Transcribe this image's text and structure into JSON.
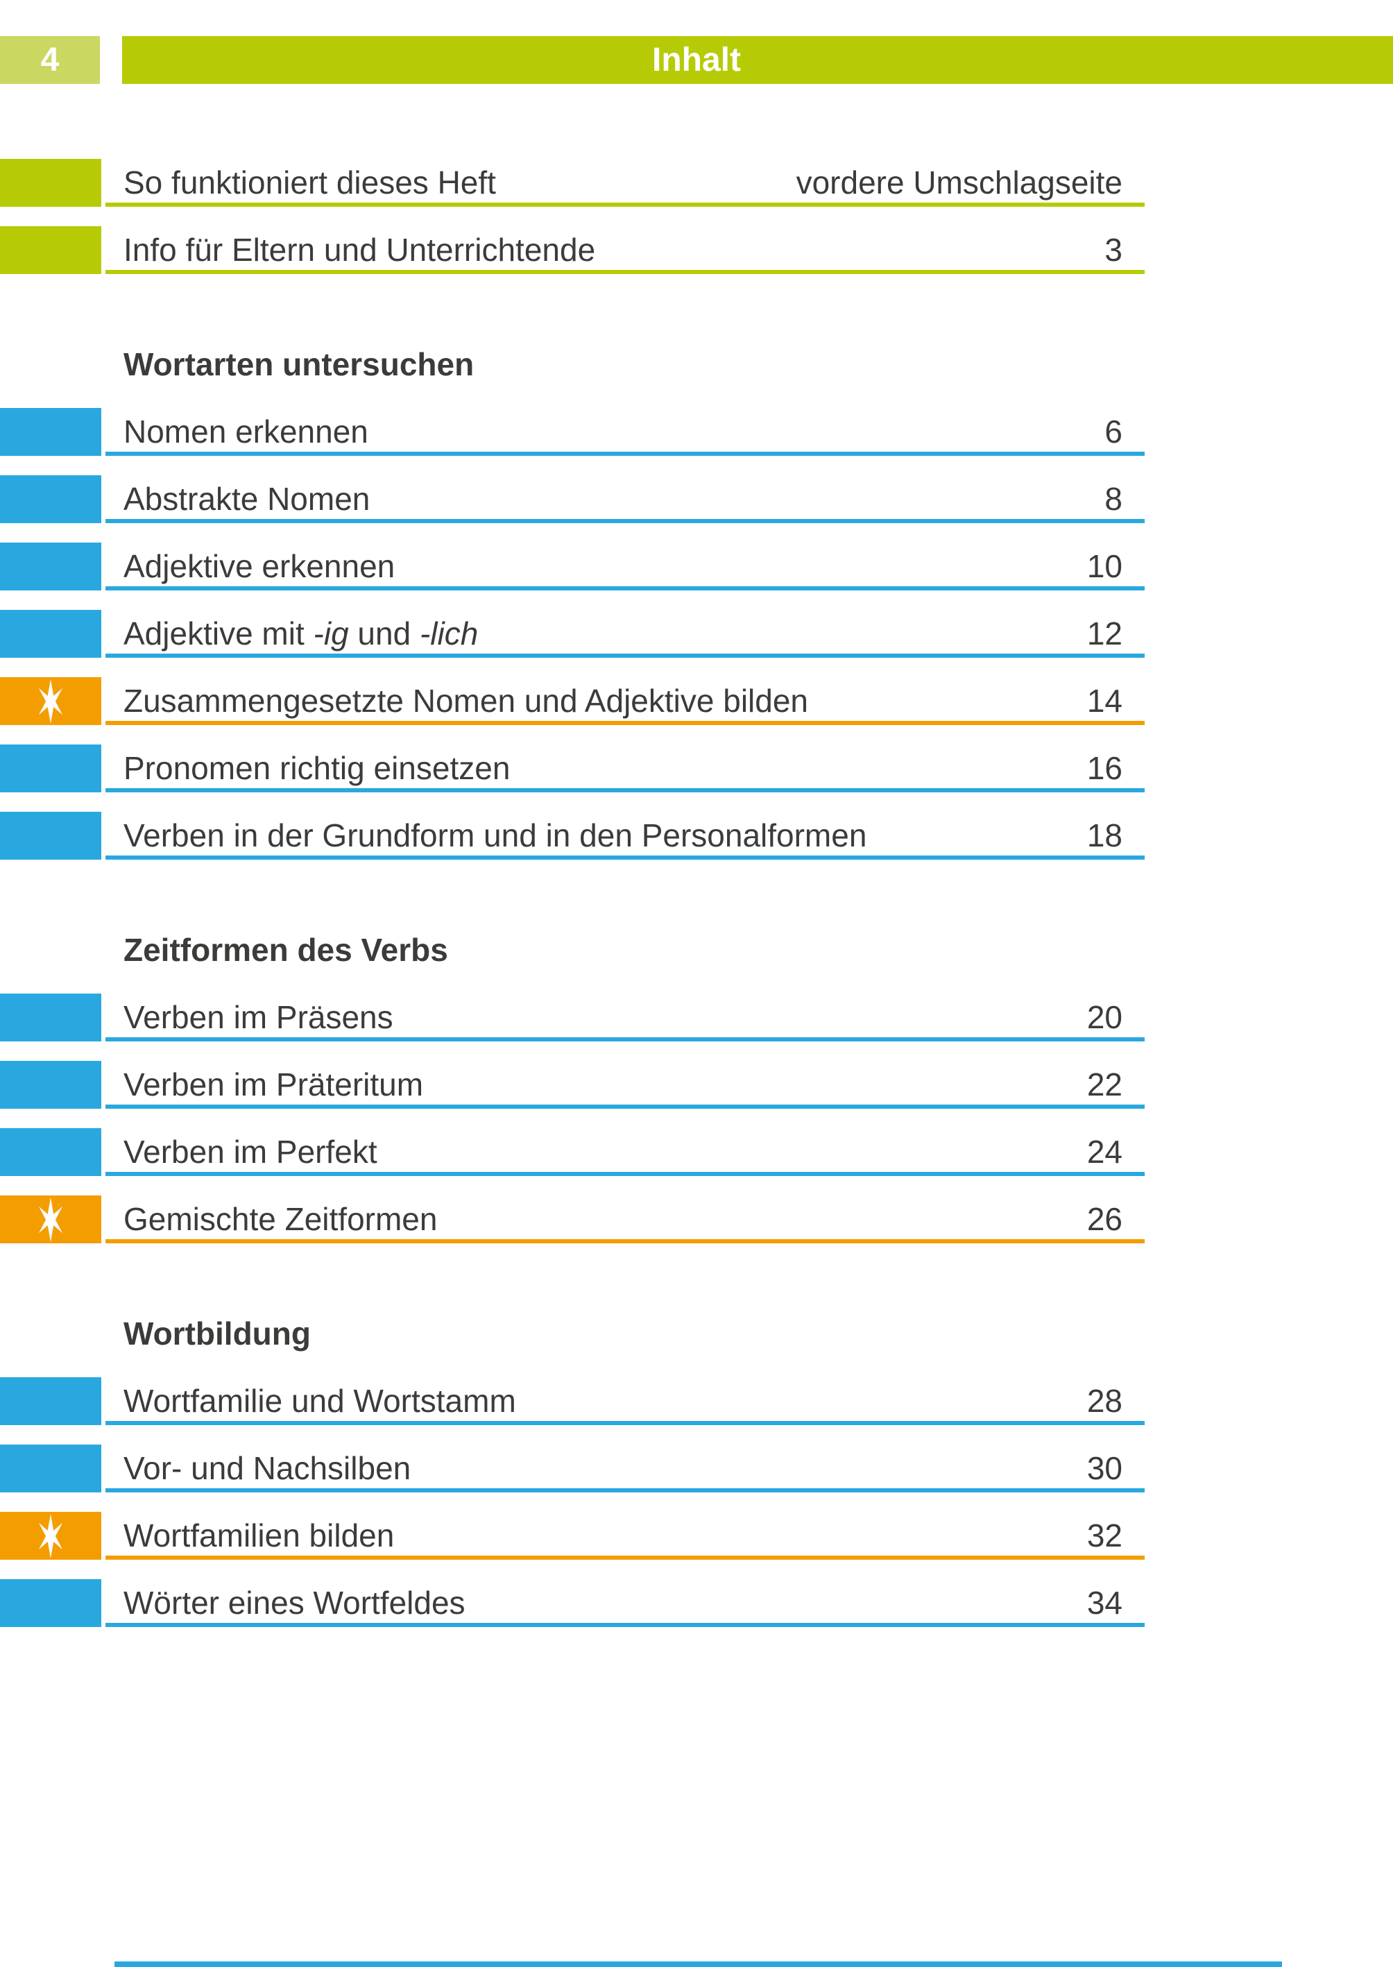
{
  "page": {
    "number": "4",
    "header_title": "Inhalt"
  },
  "colors": {
    "green": "#b6cb06",
    "green_light": "#cad862",
    "blue": "#29a8e0",
    "orange": "#f49d00",
    "text": "#3b3b3a"
  },
  "toc": {
    "headings": [
      {
        "label": "Wortarten untersuchen"
      },
      {
        "label": "Zeitformen des Verbs"
      },
      {
        "label": "Wortbildung"
      }
    ],
    "rows": [
      {
        "color": "green",
        "star": false,
        "segments": [
          {
            "text": "So funktioniert dieses Heft",
            "italic": false
          }
        ],
        "page": "vordere Umschlagseite"
      },
      {
        "color": "green",
        "star": false,
        "segments": [
          {
            "text": "Info für Eltern und Unterrichtende",
            "italic": false
          }
        ],
        "page": "3"
      },
      {
        "color": "blue",
        "star": false,
        "segments": [
          {
            "text": "Nomen erkennen",
            "italic": false
          }
        ],
        "page": "6"
      },
      {
        "color": "blue",
        "star": false,
        "segments": [
          {
            "text": "Abstrakte Nomen",
            "italic": false
          }
        ],
        "page": "8"
      },
      {
        "color": "blue",
        "star": false,
        "segments": [
          {
            "text": "Adjektive erkennen",
            "italic": false
          }
        ],
        "page": "10"
      },
      {
        "color": "blue",
        "star": false,
        "segments": [
          {
            "text": "Adjektive mit ",
            "italic": false
          },
          {
            "text": "-ig",
            "italic": true
          },
          {
            "text": " und ",
            "italic": false
          },
          {
            "text": "-lich",
            "italic": true
          }
        ],
        "page": "12"
      },
      {
        "color": "orange",
        "star": true,
        "segments": [
          {
            "text": "Zusammengesetzte Nomen und Adjektive bilden",
            "italic": false
          }
        ],
        "page": "14"
      },
      {
        "color": "blue",
        "star": false,
        "segments": [
          {
            "text": "Pronomen richtig einsetzen",
            "italic": false
          }
        ],
        "page": "16"
      },
      {
        "color": "blue",
        "star": false,
        "segments": [
          {
            "text": "Verben in der Grundform und in den Personalformen",
            "italic": false
          }
        ],
        "page": "18"
      },
      {
        "color": "blue",
        "star": false,
        "segments": [
          {
            "text": "Verben im Präsens",
            "italic": false
          }
        ],
        "page": "20"
      },
      {
        "color": "blue",
        "star": false,
        "segments": [
          {
            "text": "Verben im Präteritum",
            "italic": false
          }
        ],
        "page": "22"
      },
      {
        "color": "blue",
        "star": false,
        "segments": [
          {
            "text": "Verben im Perfekt",
            "italic": false
          }
        ],
        "page": "24"
      },
      {
        "color": "orange",
        "star": true,
        "segments": [
          {
            "text": "Gemischte Zeitformen",
            "italic": false
          }
        ],
        "page": "26"
      },
      {
        "color": "blue",
        "star": false,
        "segments": [
          {
            "text": "Wortfamilie und Wortstamm",
            "italic": false
          }
        ],
        "page": "28"
      },
      {
        "color": "blue",
        "star": false,
        "segments": [
          {
            "text": "Vor- und Nachsilben",
            "italic": false
          }
        ],
        "page": "30"
      },
      {
        "color": "orange",
        "star": true,
        "segments": [
          {
            "text": "Wortfamilien bilden",
            "italic": false
          }
        ],
        "page": "32"
      },
      {
        "color": "blue",
        "star": false,
        "segments": [
          {
            "text": "Wörter eines Wortfeldes",
            "italic": false
          }
        ],
        "page": "34"
      }
    ]
  }
}
